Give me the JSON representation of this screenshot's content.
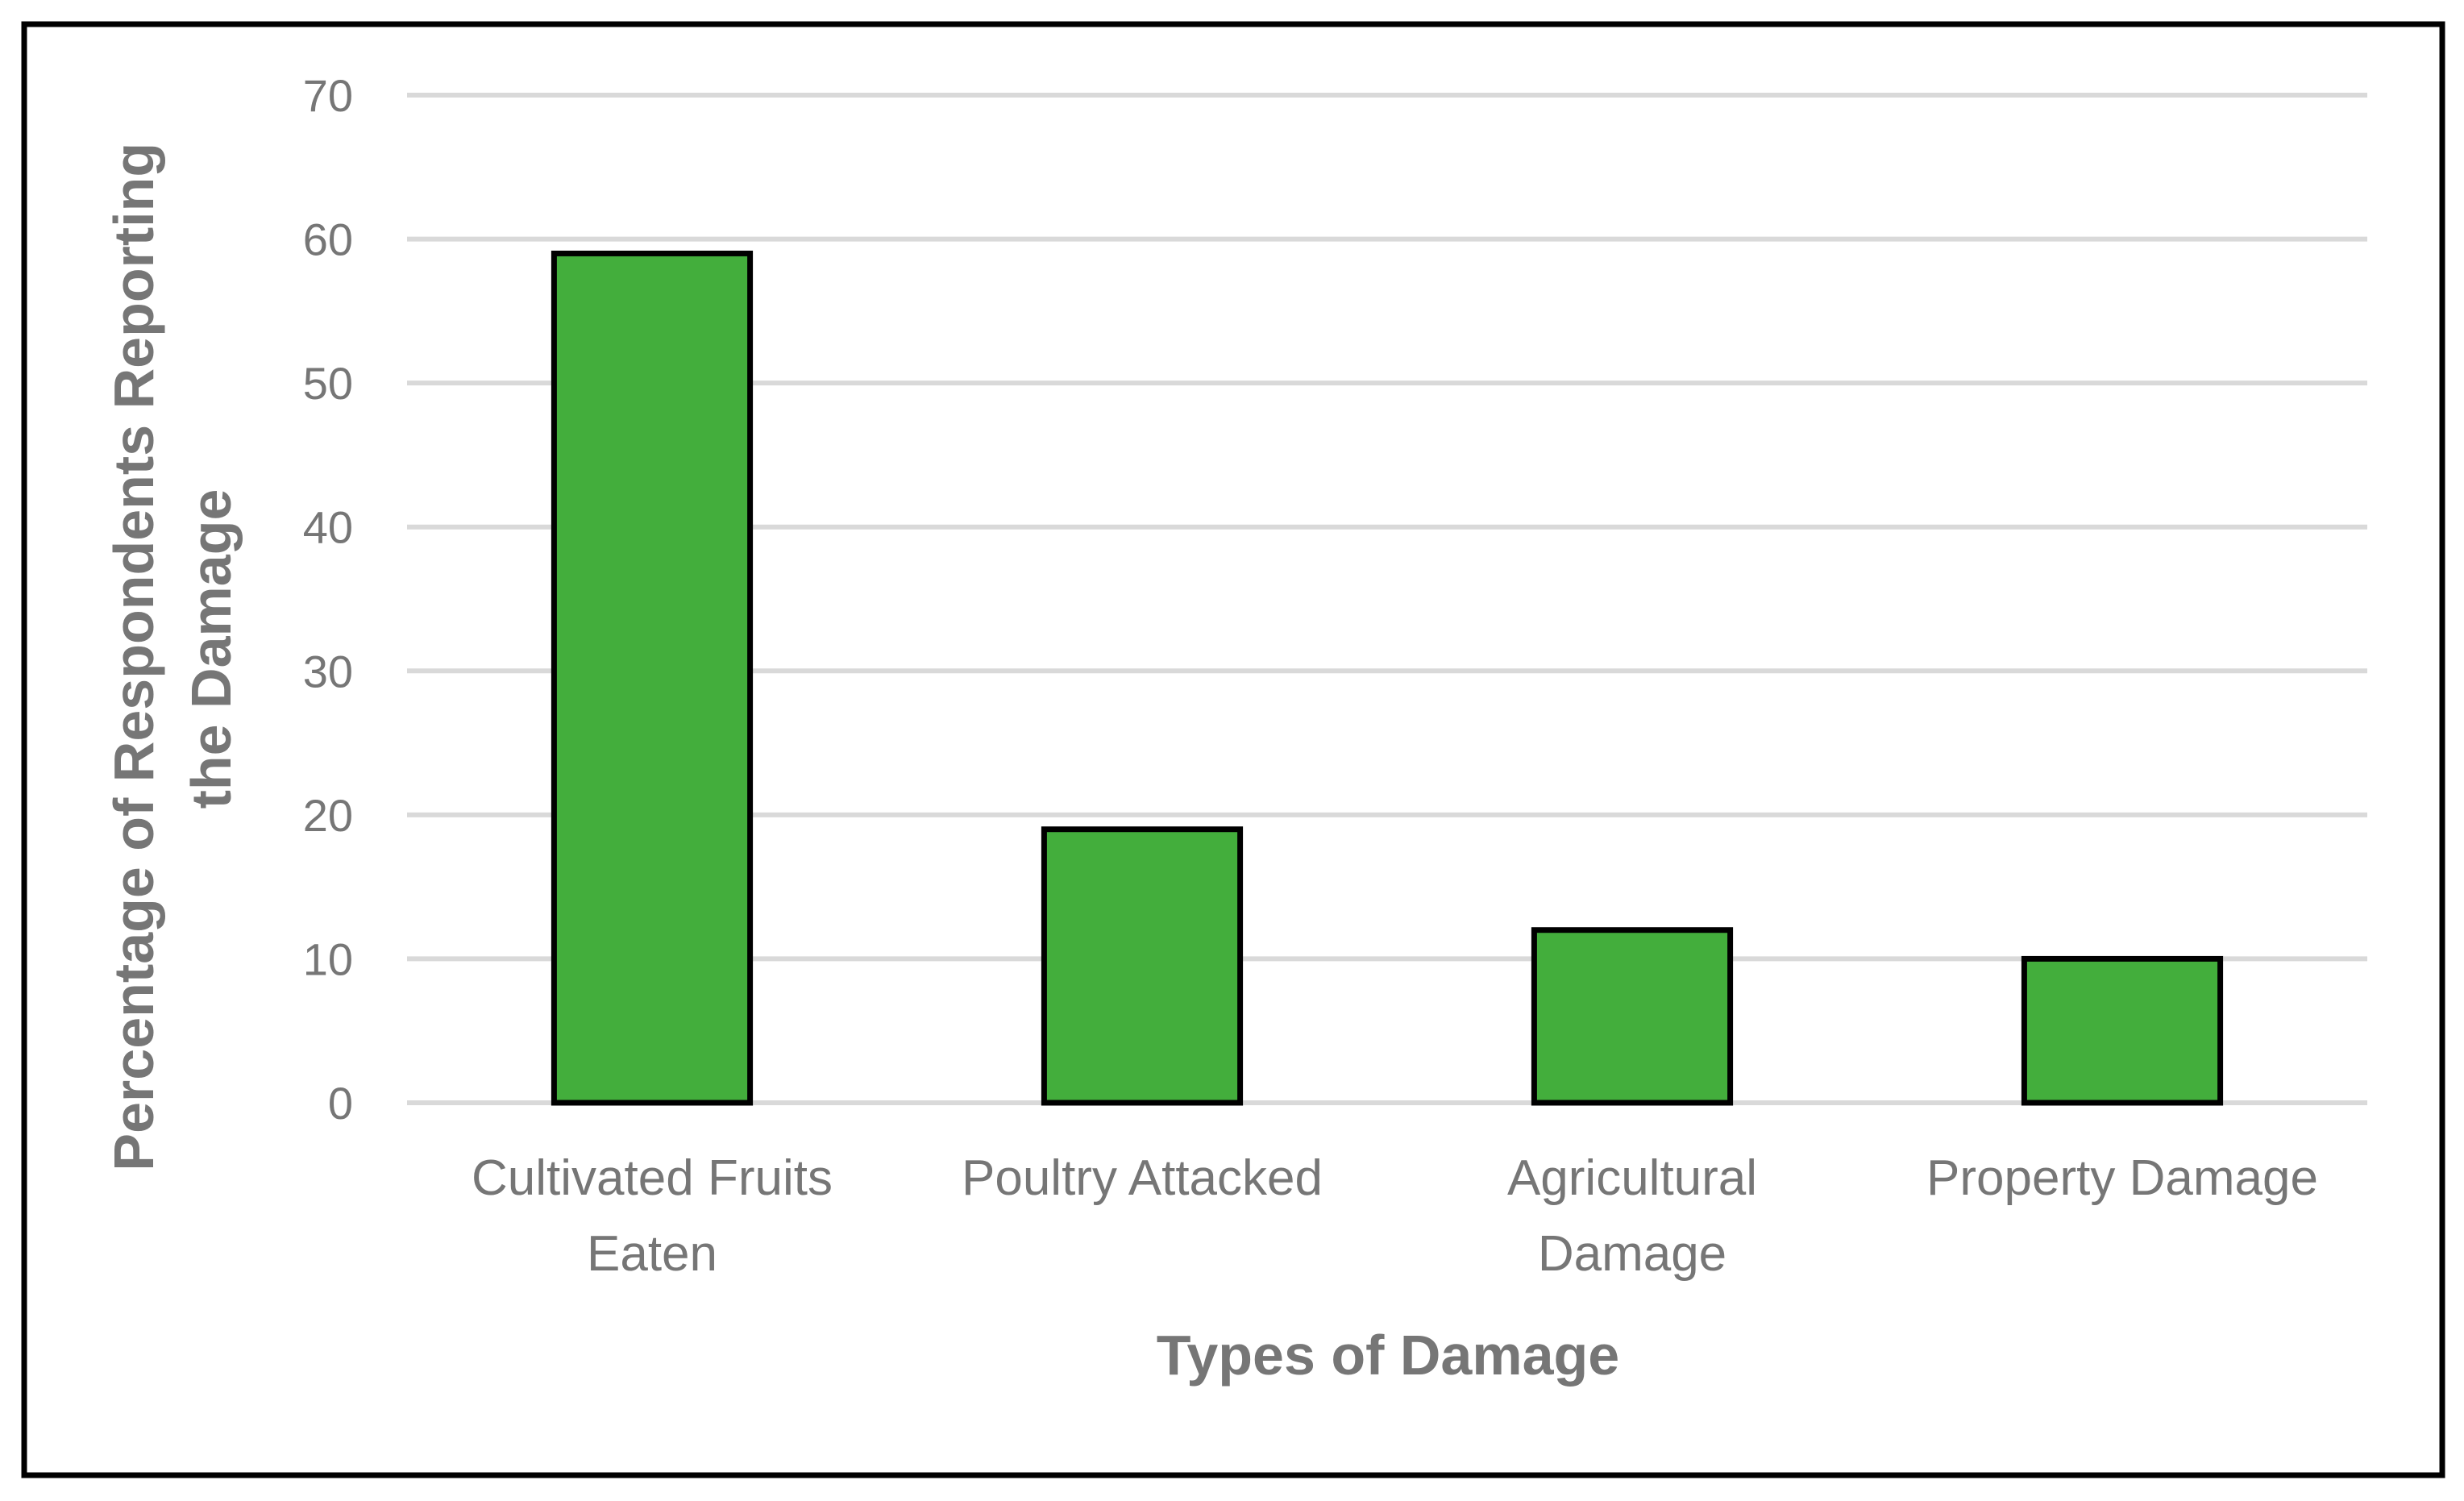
{
  "chart_data": {
    "type": "bar",
    "categories": [
      [
        "Cultivated Fruits",
        "Eaten"
      ],
      [
        "Poultry Attacked"
      ],
      [
        "Agricultural",
        "Damage"
      ],
      [
        "Property Damage"
      ]
    ],
    "values": [
      59,
      19,
      12,
      10
    ],
    "xlabel": "Types of Damage",
    "ylabel": [
      "Percentage of  Respondents Reporting",
      "the Damage"
    ],
    "ylim": [
      0,
      70
    ],
    "yticks": [
      "0",
      "10",
      "20",
      "30",
      "40",
      "50",
      "60",
      "70"
    ],
    "grid": true,
    "legend": "none",
    "colors": {
      "bar_fill": "#43ae3c",
      "bar_outline": "#000000",
      "gridline": "#d9d9d9",
      "text": "#767676",
      "frame": "#000000"
    }
  }
}
